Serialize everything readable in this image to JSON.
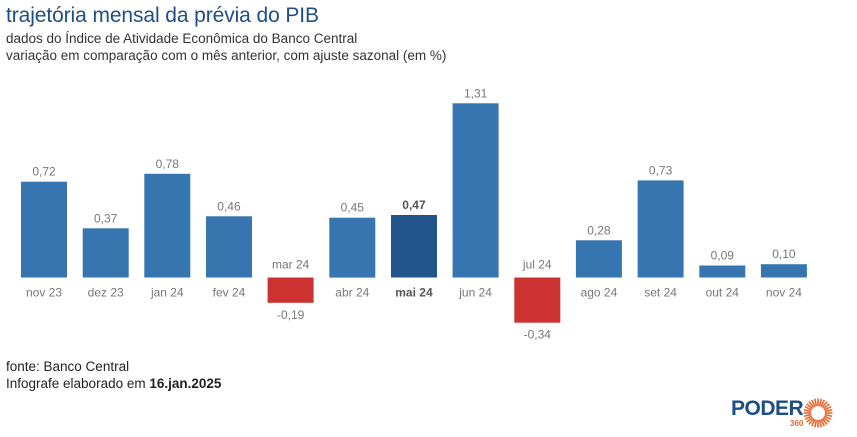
{
  "header": {
    "title": "trajetória mensal da prévia do PIB",
    "subtitle_1": "dados do Índice de Atividade Econômica do Banco Central",
    "subtitle_2": "variação em comparação com o mês anterior, com ajuste sazonal (em %)"
  },
  "footer": {
    "source": "fonte: Banco Central",
    "made_prefix": "Infografe elaborado em ",
    "made_date": "16.jan.2025"
  },
  "logo": {
    "name": "PODER",
    "sub": "360"
  },
  "colors": {
    "bar_positive": "#3775b0",
    "bar_highlight": "#21548a",
    "bar_negative": "#cc3330",
    "label": "#777777",
    "label_highlight": "#555555",
    "title": "#1f4e85",
    "logo_orange": "#e8642c"
  },
  "chart_data": {
    "type": "bar",
    "title": "trajetória mensal da prévia do PIB",
    "xlabel": "",
    "ylabel": "variação em comparação com o mês anterior, com ajuste sazonal (em %)",
    "ylim": [
      -0.34,
      1.31
    ],
    "grid": false,
    "highlight": "mai 24",
    "categories": [
      "nov 23",
      "dez 23",
      "jan 24",
      "fev 24",
      "mar 24",
      "abr 24",
      "mai 24",
      "jun 24",
      "jul 24",
      "ago 24",
      "set 24",
      "out 24",
      "nov 24"
    ],
    "values": [
      0.72,
      0.37,
      0.78,
      0.46,
      -0.19,
      0.45,
      0.47,
      1.31,
      -0.34,
      0.28,
      0.73,
      0.09,
      0.1
    ],
    "value_labels": [
      "0,72",
      "0,37",
      "0,78",
      "0,46",
      "-0,19",
      "0,45",
      "0,47",
      "1,31",
      "-0,34",
      "0,28",
      "0,73",
      "0,09",
      "0,10"
    ]
  }
}
